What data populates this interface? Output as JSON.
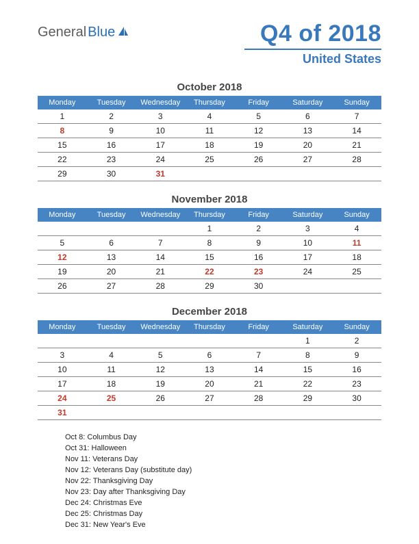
{
  "logo": {
    "text1": "General",
    "text2": "Blue"
  },
  "title": "Q4 of 2018",
  "subtitle": "United States",
  "colors": {
    "header_bg": "#4684c4",
    "accent": "#3a78bc",
    "holiday": "#c0392b",
    "grid": "#888888",
    "text": "#222222"
  },
  "day_headers": [
    "Monday",
    "Tuesday",
    "Wednesday",
    "Thursday",
    "Friday",
    "Saturday",
    "Sunday"
  ],
  "months": [
    {
      "title": "October 2018",
      "weeks": [
        [
          {
            "d": 1
          },
          {
            "d": 2
          },
          {
            "d": 3
          },
          {
            "d": 4
          },
          {
            "d": 5
          },
          {
            "d": 6
          },
          {
            "d": 7
          }
        ],
        [
          {
            "d": 8,
            "h": true
          },
          {
            "d": 9
          },
          {
            "d": 10
          },
          {
            "d": 11
          },
          {
            "d": 12
          },
          {
            "d": 13
          },
          {
            "d": 14
          }
        ],
        [
          {
            "d": 15
          },
          {
            "d": 16
          },
          {
            "d": 17
          },
          {
            "d": 18
          },
          {
            "d": 19
          },
          {
            "d": 20
          },
          {
            "d": 21
          }
        ],
        [
          {
            "d": 22
          },
          {
            "d": 23
          },
          {
            "d": 24
          },
          {
            "d": 25
          },
          {
            "d": 26
          },
          {
            "d": 27
          },
          {
            "d": 28
          }
        ],
        [
          {
            "d": 29
          },
          {
            "d": 30
          },
          {
            "d": 31,
            "h": true
          },
          {
            "d": ""
          },
          {
            "d": ""
          },
          {
            "d": ""
          },
          {
            "d": ""
          }
        ]
      ]
    },
    {
      "title": "November 2018",
      "weeks": [
        [
          {
            "d": ""
          },
          {
            "d": ""
          },
          {
            "d": ""
          },
          {
            "d": 1
          },
          {
            "d": 2
          },
          {
            "d": 3
          },
          {
            "d": 4
          }
        ],
        [
          {
            "d": 5
          },
          {
            "d": 6
          },
          {
            "d": 7
          },
          {
            "d": 8
          },
          {
            "d": 9
          },
          {
            "d": 10
          },
          {
            "d": 11,
            "h": true
          }
        ],
        [
          {
            "d": 12,
            "h": true
          },
          {
            "d": 13
          },
          {
            "d": 14
          },
          {
            "d": 15
          },
          {
            "d": 16
          },
          {
            "d": 17
          },
          {
            "d": 18
          }
        ],
        [
          {
            "d": 19
          },
          {
            "d": 20
          },
          {
            "d": 21
          },
          {
            "d": 22,
            "h": true
          },
          {
            "d": 23,
            "h": true
          },
          {
            "d": 24
          },
          {
            "d": 25
          }
        ],
        [
          {
            "d": 26
          },
          {
            "d": 27
          },
          {
            "d": 28
          },
          {
            "d": 29
          },
          {
            "d": 30
          },
          {
            "d": ""
          },
          {
            "d": ""
          }
        ]
      ]
    },
    {
      "title": "December 2018",
      "weeks": [
        [
          {
            "d": ""
          },
          {
            "d": ""
          },
          {
            "d": ""
          },
          {
            "d": ""
          },
          {
            "d": ""
          },
          {
            "d": 1
          },
          {
            "d": 2
          }
        ],
        [
          {
            "d": 3
          },
          {
            "d": 4
          },
          {
            "d": 5
          },
          {
            "d": 6
          },
          {
            "d": 7
          },
          {
            "d": 8
          },
          {
            "d": 9
          }
        ],
        [
          {
            "d": 10
          },
          {
            "d": 11
          },
          {
            "d": 12
          },
          {
            "d": 13
          },
          {
            "d": 14
          },
          {
            "d": 15
          },
          {
            "d": 16
          }
        ],
        [
          {
            "d": 17
          },
          {
            "d": 18
          },
          {
            "d": 19
          },
          {
            "d": 20
          },
          {
            "d": 21
          },
          {
            "d": 22
          },
          {
            "d": 23
          }
        ],
        [
          {
            "d": 24,
            "h": true
          },
          {
            "d": 25,
            "h": true
          },
          {
            "d": 26
          },
          {
            "d": 27
          },
          {
            "d": 28
          },
          {
            "d": 29
          },
          {
            "d": 30
          }
        ],
        [
          {
            "d": 31,
            "h": true
          },
          {
            "d": ""
          },
          {
            "d": ""
          },
          {
            "d": ""
          },
          {
            "d": ""
          },
          {
            "d": ""
          },
          {
            "d": ""
          }
        ]
      ]
    }
  ],
  "holidays": [
    "Oct 8: Columbus Day",
    "Oct 31: Halloween",
    "Nov 11: Veterans Day",
    "Nov 12: Veterans Day (substitute day)",
    "Nov 22: Thanksgiving Day",
    "Nov 23: Day after Thanksgiving Day",
    "Dec 24: Christmas Eve",
    "Dec 25: Christmas Day",
    "Dec 31: New Year's Eve"
  ]
}
